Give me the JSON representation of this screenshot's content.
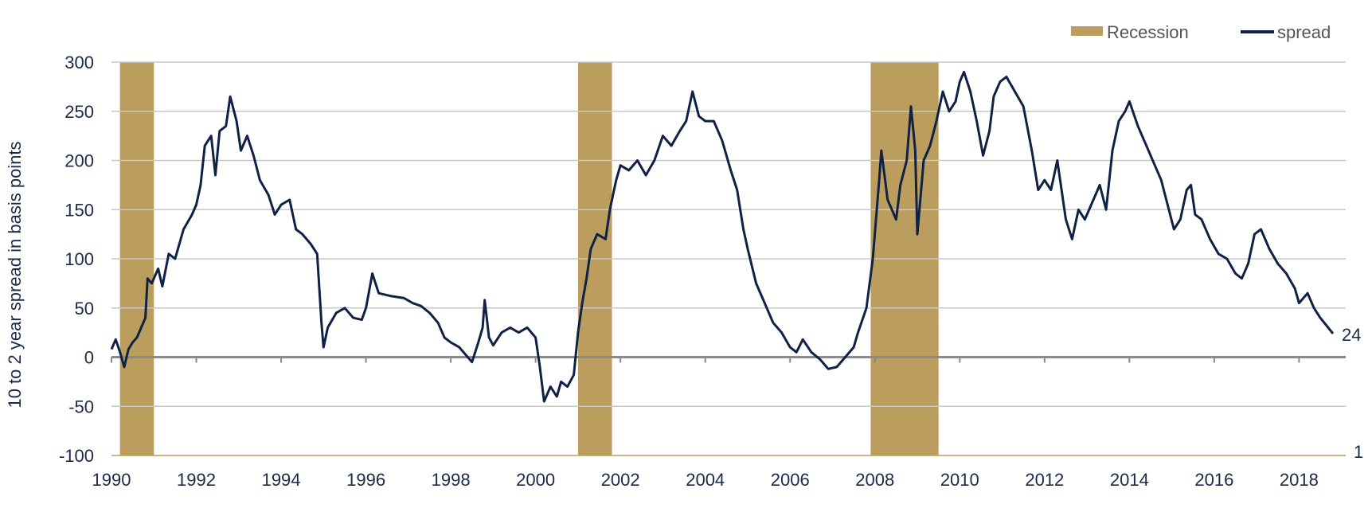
{
  "chart_data": {
    "type": "line",
    "title": "",
    "ylabel": "10 to 2 year spread in basis points",
    "xlabel": "",
    "ylim": [
      -100,
      300
    ],
    "xlim": [
      1990,
      2019.1
    ],
    "y_ticks": [
      "300",
      "250",
      "200",
      "150",
      "100",
      "50",
      "0",
      "-50",
      "-100"
    ],
    "x_ticks": [
      "1990",
      "1992",
      "1994",
      "1996",
      "1998",
      "2000",
      "2002",
      "2004",
      "2006",
      "2008",
      "2010",
      "2012",
      "2014",
      "2016",
      "2018"
    ],
    "secondary_axis_label": "1",
    "last_value_label": "24",
    "grid": true,
    "legend_position": "top-right",
    "legend": {
      "recession": "Recession",
      "spread": "spread"
    },
    "colors": {
      "recession": "#bb9e5e",
      "spread": "#0f2144",
      "grid": "#c8c8c8",
      "zero_line": "#8a8a8a",
      "secondary_axis": "#bb9e5e"
    },
    "recessions": [
      {
        "start": 1990.2,
        "end": 1991.0
      },
      {
        "start": 2001.0,
        "end": 2001.8
      },
      {
        "start": 2007.9,
        "end": 2009.5
      }
    ],
    "series": [
      {
        "name": "spread",
        "points": [
          [
            1990.0,
            8
          ],
          [
            1990.1,
            18
          ],
          [
            1990.2,
            5
          ],
          [
            1990.3,
            -10
          ],
          [
            1990.4,
            8
          ],
          [
            1990.5,
            15
          ],
          [
            1990.6,
            20
          ],
          [
            1990.8,
            40
          ],
          [
            1990.85,
            80
          ],
          [
            1990.95,
            75
          ],
          [
            1991.1,
            90
          ],
          [
            1991.2,
            72
          ],
          [
            1991.35,
            105
          ],
          [
            1991.5,
            100
          ],
          [
            1991.7,
            130
          ],
          [
            1991.9,
            145
          ],
          [
            1992.0,
            155
          ],
          [
            1992.1,
            175
          ],
          [
            1992.2,
            215
          ],
          [
            1992.35,
            225
          ],
          [
            1992.45,
            185
          ],
          [
            1992.55,
            230
          ],
          [
            1992.7,
            235
          ],
          [
            1992.8,
            265
          ],
          [
            1992.95,
            240
          ],
          [
            1993.05,
            210
          ],
          [
            1993.2,
            225
          ],
          [
            1993.35,
            205
          ],
          [
            1993.5,
            180
          ],
          [
            1993.7,
            165
          ],
          [
            1993.85,
            145
          ],
          [
            1994.0,
            155
          ],
          [
            1994.2,
            160
          ],
          [
            1994.35,
            130
          ],
          [
            1994.5,
            125
          ],
          [
            1994.7,
            115
          ],
          [
            1994.85,
            105
          ],
          [
            1994.95,
            35
          ],
          [
            1995.0,
            10
          ],
          [
            1995.1,
            30
          ],
          [
            1995.3,
            45
          ],
          [
            1995.5,
            50
          ],
          [
            1995.7,
            40
          ],
          [
            1995.9,
            38
          ],
          [
            1996.0,
            50
          ],
          [
            1996.15,
            85
          ],
          [
            1996.3,
            65
          ],
          [
            1996.6,
            62
          ],
          [
            1996.9,
            60
          ],
          [
            1997.1,
            55
          ],
          [
            1997.3,
            52
          ],
          [
            1997.5,
            45
          ],
          [
            1997.7,
            35
          ],
          [
            1997.85,
            20
          ],
          [
            1998.0,
            15
          ],
          [
            1998.2,
            10
          ],
          [
            1998.5,
            -5
          ],
          [
            1998.65,
            15
          ],
          [
            1998.75,
            30
          ],
          [
            1998.8,
            58
          ],
          [
            1998.9,
            20
          ],
          [
            1999.0,
            12
          ],
          [
            1999.2,
            25
          ],
          [
            1999.4,
            30
          ],
          [
            1999.6,
            25
          ],
          [
            1999.8,
            30
          ],
          [
            2000.0,
            20
          ],
          [
            2000.1,
            -10
          ],
          [
            2000.2,
            -45
          ],
          [
            2000.35,
            -30
          ],
          [
            2000.5,
            -40
          ],
          [
            2000.6,
            -25
          ],
          [
            2000.75,
            -30
          ],
          [
            2000.9,
            -18
          ],
          [
            2001.0,
            25
          ],
          [
            2001.1,
            55
          ],
          [
            2001.2,
            80
          ],
          [
            2001.3,
            110
          ],
          [
            2001.45,
            125
          ],
          [
            2001.65,
            120
          ],
          [
            2001.75,
            150
          ],
          [
            2001.9,
            180
          ],
          [
            2002.0,
            195
          ],
          [
            2002.2,
            190
          ],
          [
            2002.4,
            200
          ],
          [
            2002.6,
            185
          ],
          [
            2002.8,
            200
          ],
          [
            2003.0,
            225
          ],
          [
            2003.2,
            215
          ],
          [
            2003.4,
            230
          ],
          [
            2003.55,
            240
          ],
          [
            2003.7,
            270
          ],
          [
            2003.85,
            245
          ],
          [
            2004.0,
            240
          ],
          [
            2004.2,
            240
          ],
          [
            2004.4,
            220
          ],
          [
            2004.6,
            190
          ],
          [
            2004.75,
            170
          ],
          [
            2004.9,
            130
          ],
          [
            2005.0,
            110
          ],
          [
            2005.2,
            75
          ],
          [
            2005.4,
            55
          ],
          [
            2005.6,
            35
          ],
          [
            2005.8,
            25
          ],
          [
            2006.0,
            10
          ],
          [
            2006.15,
            5
          ],
          [
            2006.3,
            18
          ],
          [
            2006.5,
            5
          ],
          [
            2006.7,
            -2
          ],
          [
            2006.9,
            -12
          ],
          [
            2007.1,
            -10
          ],
          [
            2007.3,
            0
          ],
          [
            2007.5,
            10
          ],
          [
            2007.6,
            25
          ],
          [
            2007.8,
            50
          ],
          [
            2007.95,
            100
          ],
          [
            2008.1,
            180
          ],
          [
            2008.15,
            210
          ],
          [
            2008.3,
            160
          ],
          [
            2008.5,
            140
          ],
          [
            2008.6,
            175
          ],
          [
            2008.75,
            200
          ],
          [
            2008.85,
            255
          ],
          [
            2008.95,
            210
          ],
          [
            2009.0,
            125
          ],
          [
            2009.15,
            200
          ],
          [
            2009.3,
            215
          ],
          [
            2009.45,
            240
          ],
          [
            2009.6,
            270
          ],
          [
            2009.75,
            250
          ],
          [
            2009.9,
            260
          ],
          [
            2010.0,
            280
          ],
          [
            2010.1,
            290
          ],
          [
            2010.25,
            270
          ],
          [
            2010.4,
            240
          ],
          [
            2010.55,
            205
          ],
          [
            2010.7,
            230
          ],
          [
            2010.8,
            265
          ],
          [
            2010.95,
            280
          ],
          [
            2011.1,
            285
          ],
          [
            2011.3,
            270
          ],
          [
            2011.5,
            255
          ],
          [
            2011.7,
            210
          ],
          [
            2011.85,
            170
          ],
          [
            2012.0,
            180
          ],
          [
            2012.15,
            170
          ],
          [
            2012.3,
            200
          ],
          [
            2012.5,
            140
          ],
          [
            2012.65,
            120
          ],
          [
            2012.8,
            150
          ],
          [
            2012.95,
            140
          ],
          [
            2013.1,
            155
          ],
          [
            2013.3,
            175
          ],
          [
            2013.45,
            150
          ],
          [
            2013.6,
            210
          ],
          [
            2013.75,
            240
          ],
          [
            2013.9,
            250
          ],
          [
            2014.0,
            260
          ],
          [
            2014.2,
            235
          ],
          [
            2014.4,
            215
          ],
          [
            2014.6,
            195
          ],
          [
            2014.75,
            180
          ],
          [
            2014.9,
            155
          ],
          [
            2015.05,
            130
          ],
          [
            2015.2,
            140
          ],
          [
            2015.35,
            170
          ],
          [
            2015.45,
            175
          ],
          [
            2015.55,
            145
          ],
          [
            2015.7,
            140
          ],
          [
            2015.9,
            120
          ],
          [
            2016.1,
            105
          ],
          [
            2016.3,
            100
          ],
          [
            2016.5,
            85
          ],
          [
            2016.65,
            80
          ],
          [
            2016.8,
            95
          ],
          [
            2016.95,
            125
          ],
          [
            2017.1,
            130
          ],
          [
            2017.3,
            110
          ],
          [
            2017.5,
            95
          ],
          [
            2017.7,
            85
          ],
          [
            2017.9,
            70
          ],
          [
            2018.0,
            55
          ],
          [
            2018.2,
            65
          ],
          [
            2018.35,
            50
          ],
          [
            2018.5,
            40
          ],
          [
            2018.65,
            32
          ],
          [
            2018.8,
            24
          ]
        ]
      }
    ]
  }
}
